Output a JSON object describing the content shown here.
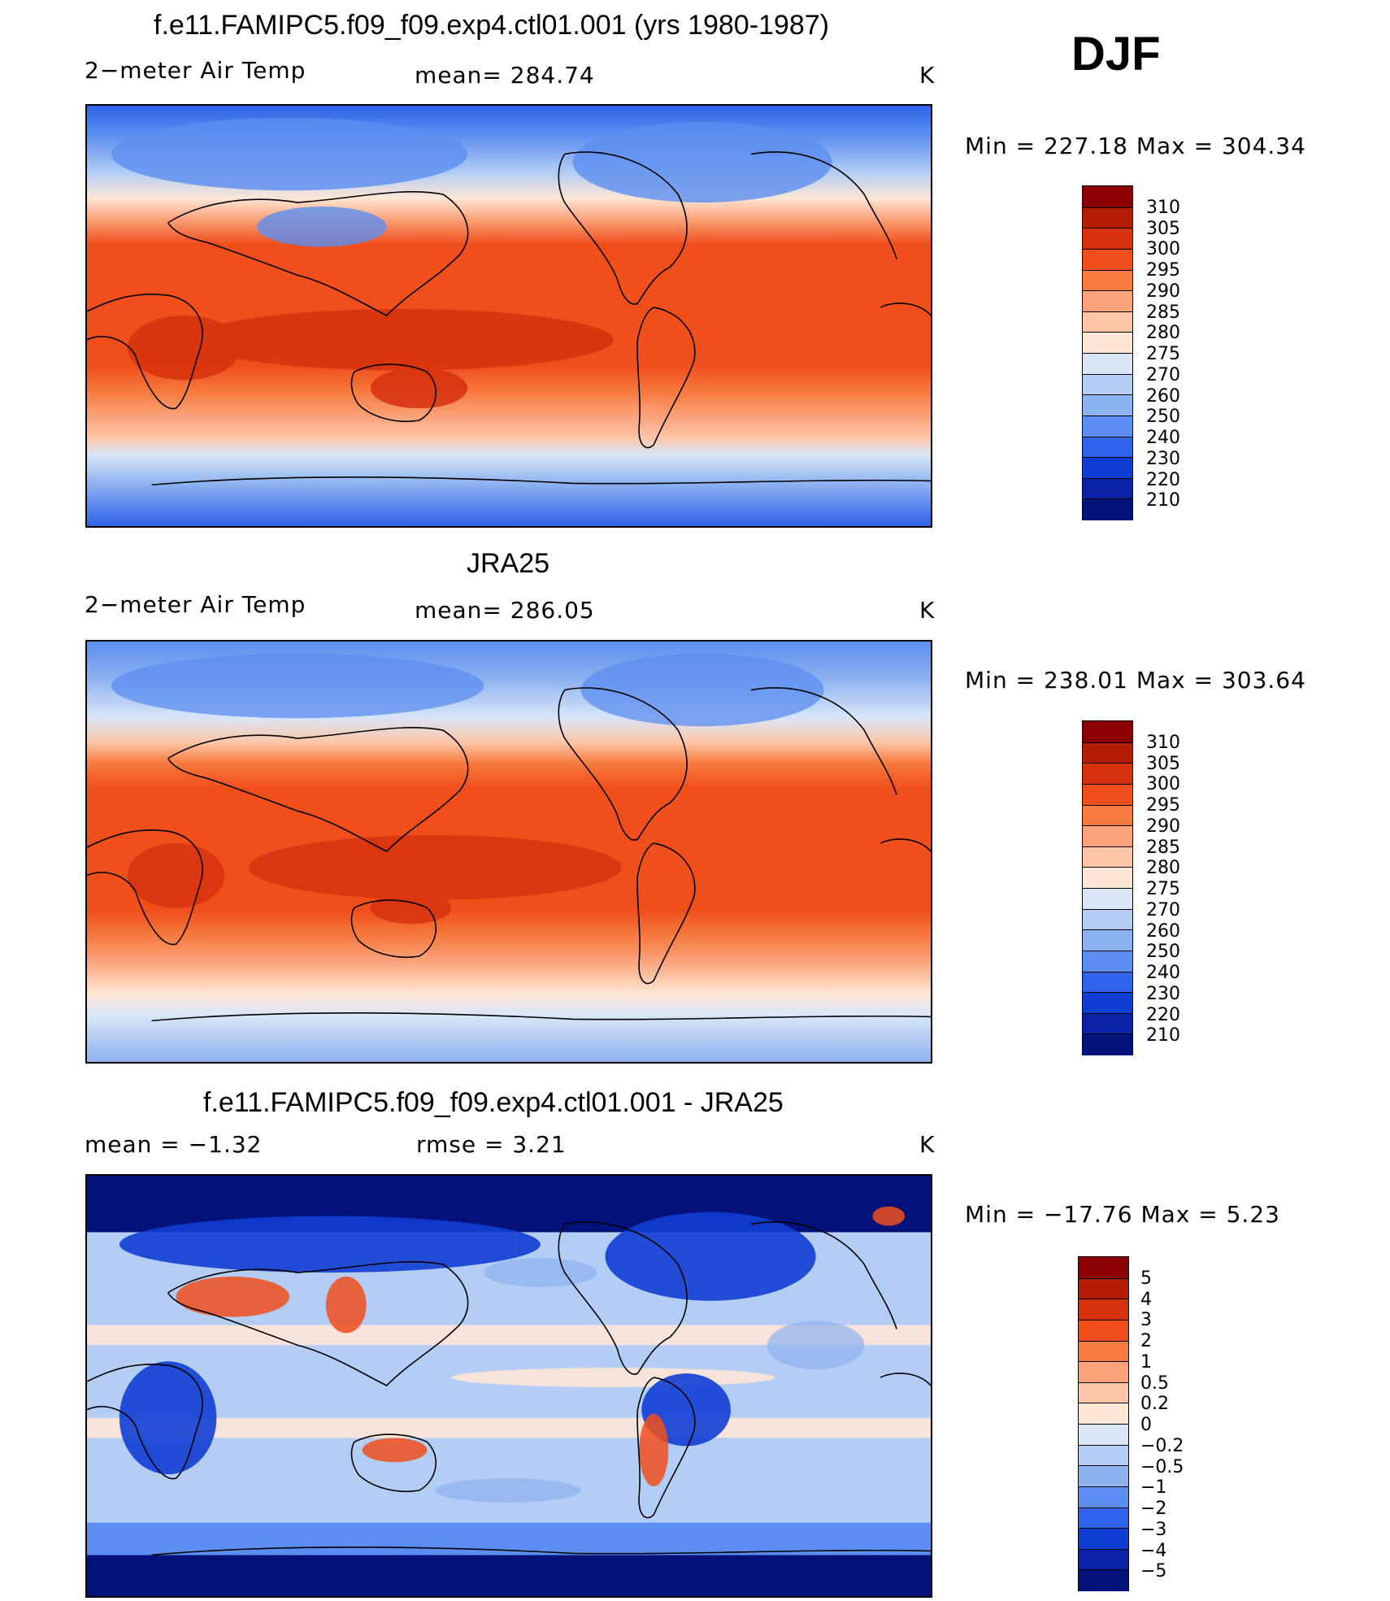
{
  "season": "DJF",
  "panels": [
    {
      "title": "f.e11.FAMIPC5.f09_f09.exp4.ctl01.001 (yrs 1980-1987)",
      "left_label": "2−meter Air Temp",
      "center_label": "mean=  284.74",
      "unit": "K",
      "minmax": "Min  =  227.18  Max  =  304.34",
      "field": "model"
    },
    {
      "title": "JRA25",
      "left_label": "2−meter Air Temp",
      "center_label": "mean=  286.05",
      "unit": "K",
      "minmax": "Min  =  238.01  Max  =  303.64",
      "field": "obs"
    },
    {
      "title": "f.e11.FAMIPC5.f09_f09.exp4.ctl01.001 - JRA25",
      "left_label": "mean  =    −1.32",
      "center_label": "rmse  =     3.21",
      "unit": "K",
      "minmax": "Min  =  −17.76  Max  =      5.23",
      "field": "diff"
    }
  ],
  "colorbars": {
    "absolute": {
      "labels": [
        "310",
        "305",
        "300",
        "295",
        "290",
        "285",
        "280",
        "275",
        "270",
        "260",
        "250",
        "240",
        "230",
        "220",
        "210"
      ],
      "colors": [
        "#8b0000",
        "#b21e05",
        "#d6310d",
        "#f04e1b",
        "#f77a3e",
        "#fba27a",
        "#fdc6a8",
        "#fee6d6",
        "#d8e6f8",
        "#b3cdf5",
        "#8db2f0",
        "#5b8ef0",
        "#2f63ea",
        "#0f3ed4",
        "#0a22a8",
        "#03127a"
      ]
    },
    "difference": {
      "labels": [
        "5",
        "4",
        "3",
        "2",
        "1",
        "0.5",
        "0.2",
        "0",
        "−0.2",
        "−0.5",
        "−1",
        "−2",
        "−3",
        "−4",
        "−5"
      ],
      "colors": [
        "#8b0000",
        "#b21e05",
        "#d6310d",
        "#f04e1b",
        "#f77a3e",
        "#fba27a",
        "#fdc6a8",
        "#fee6d6",
        "#d8e6f8",
        "#b3cdf5",
        "#8db2f0",
        "#5b8ef0",
        "#2f63ea",
        "#0f3ed4",
        "#0a22a8",
        "#03127a"
      ]
    }
  }
}
